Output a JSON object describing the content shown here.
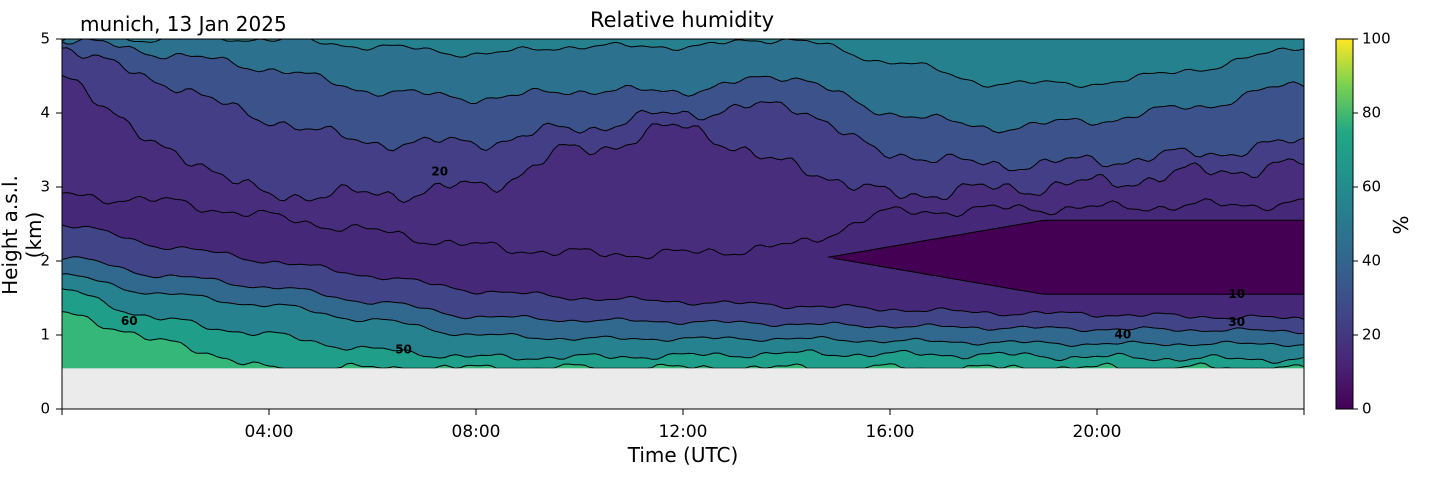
{
  "header": {
    "site_date": "munich, 13 Jan 2025",
    "title": "Relative humidity"
  },
  "chart_data": {
    "type": "heatmap",
    "title": "Relative humidity",
    "xlabel": "Time (UTC)",
    "ylabel": "Height a.s.l. (km)",
    "x_tick_labels": [
      "04:00",
      "08:00",
      "12:00",
      "16:00",
      "20:00"
    ],
    "x_ticks_hours": [
      4,
      8,
      12,
      16,
      20
    ],
    "xlim_hours": [
      0,
      24
    ],
    "y_tick_labels": [
      "0",
      "1",
      "2",
      "3",
      "4",
      "5"
    ],
    "ylim_km": [
      0,
      5
    ],
    "no_data_below_km": 0.55,
    "colorbar": {
      "label": "%",
      "range": [
        0,
        100
      ],
      "tick_labels": [
        "0",
        "20",
        "40",
        "60",
        "80",
        "100"
      ],
      "colormap": "viridis"
    },
    "contour_levels_pct": [
      10,
      20,
      30,
      40,
      50,
      60
    ],
    "contour_labels": [
      {
        "text": "60",
        "hour": 1.3,
        "km": 1.18
      },
      {
        "text": "50",
        "hour": 6.6,
        "km": 0.8
      },
      {
        "text": "20",
        "hour": 7.3,
        "km": 3.2
      },
      {
        "text": "40",
        "hour": 20.5,
        "km": 1.0
      },
      {
        "text": "30",
        "hour": 22.7,
        "km": 1.17
      },
      {
        "text": "10",
        "hour": 22.7,
        "km": 1.55
      }
    ],
    "contour_heights_km": {
      "hours": [
        0,
        2,
        4,
        6,
        8,
        10,
        12,
        14,
        16,
        18,
        20,
        22,
        24
      ],
      "rh60": [
        1.3,
        0.9,
        0.55,
        0.55,
        0.55,
        0.55,
        0.55,
        0.55,
        0.55,
        0.55,
        0.55,
        0.55,
        0.55
      ],
      "rh50": [
        1.6,
        1.2,
        1.0,
        0.8,
        0.7,
        0.7,
        0.72,
        0.75,
        0.74,
        0.73,
        0.7,
        0.68,
        0.67
      ],
      "rh40": [
        1.8,
        1.55,
        1.4,
        1.2,
        1.0,
        0.95,
        0.95,
        0.95,
        0.92,
        0.9,
        0.88,
        0.88,
        0.88
      ],
      "rh30": [
        2.05,
        1.8,
        1.65,
        1.45,
        1.25,
        1.2,
        1.18,
        1.15,
        1.12,
        1.1,
        1.08,
        1.07,
        1.05
      ],
      "rh20": [
        2.5,
        2.2,
        2.0,
        1.8,
        1.6,
        1.5,
        1.45,
        1.4,
        1.35,
        1.3,
        1.28,
        1.25,
        1.22
      ]
    },
    "lines_above_km": {
      "hours": [
        0,
        2,
        4,
        6,
        8,
        10,
        12,
        14,
        16,
        18,
        20,
        22,
        24
      ],
      "l1": [
        2.9,
        2.8,
        2.6,
        2.4,
        2.2,
        2.1,
        2.1,
        2.2,
        2.65,
        2.7,
        2.72,
        2.75,
        2.78
      ],
      "l2": [
        4.5,
        3.5,
        2.9,
        2.9,
        3.0,
        3.5,
        3.8,
        3.3,
        2.9,
        2.97,
        3.05,
        3.2,
        3.3
      ],
      "l3": [
        4.9,
        4.4,
        3.9,
        3.6,
        3.6,
        3.8,
        4.0,
        4.1,
        3.45,
        3.3,
        3.35,
        3.45,
        3.6
      ],
      "l4": [
        5.0,
        4.8,
        4.6,
        4.3,
        4.2,
        4.3,
        4.3,
        4.5,
        4.0,
        3.8,
        3.9,
        4.1,
        4.4
      ],
      "l5": [
        5.0,
        5.0,
        5.0,
        4.9,
        4.8,
        4.9,
        4.9,
        5.0,
        4.7,
        4.4,
        4.4,
        4.6,
        4.9
      ]
    }
  }
}
